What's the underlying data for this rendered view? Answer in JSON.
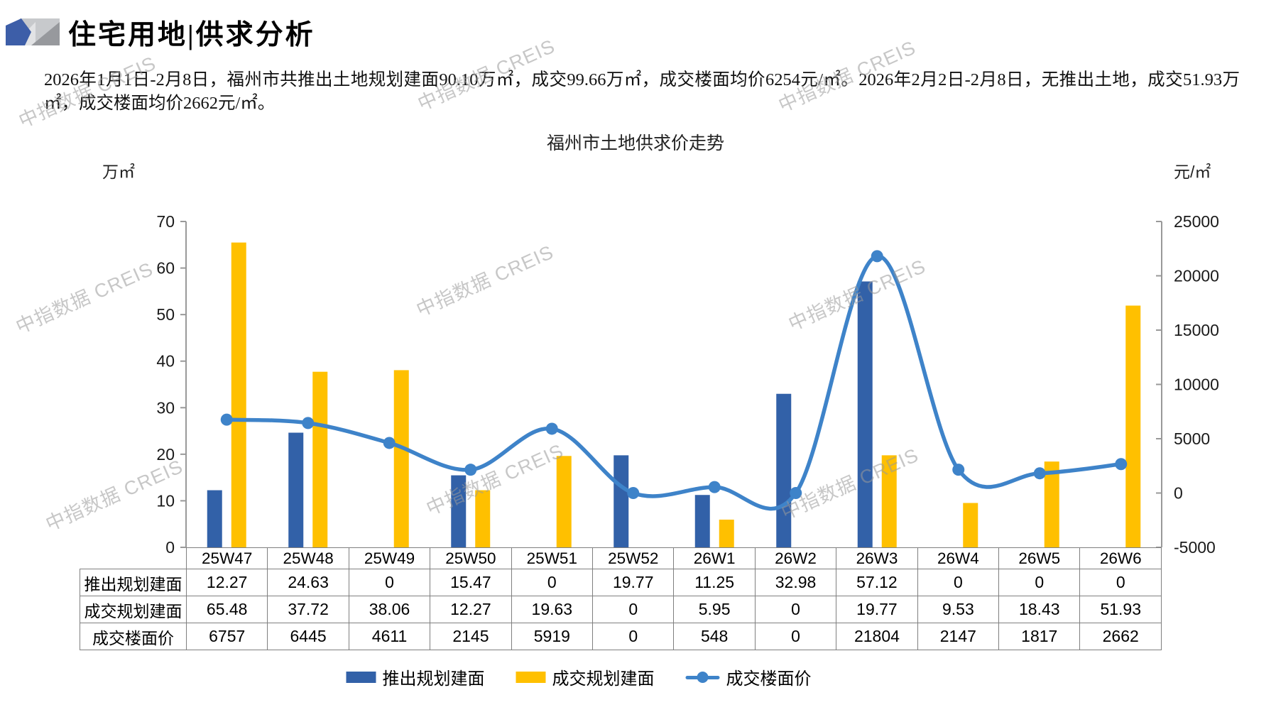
{
  "header": {
    "title": "住宅用地|供求分析"
  },
  "summary": "2026年1月1日-2月8日，福州市共推出土地规划建面90.10万㎡，成交99.66万㎡，成交楼面均价6254元/㎡。2026年2月2日-2月8日，无推出土地，成交51.93万㎡，成交楼面均价2662元/㎡。",
  "watermark": "中指数据 CREIS",
  "colors": {
    "bar_blue": "#3261A8",
    "bar_yellow": "#FFC000",
    "line_blue": "#3E83C9",
    "axis_gray": "#999999",
    "table_border": "#7F7F7F",
    "icon_blue": "#3D5EA8",
    "icon_gray_light": "#C7C9CC",
    "icon_gray_dark": "#97999D"
  },
  "chart_data": {
    "type": "bar+line",
    "title": "福州市土地供求价走势",
    "categories": [
      "25W47",
      "25W48",
      "25W49",
      "25W50",
      "25W51",
      "25W52",
      "26W1",
      "26W2",
      "26W3",
      "26W4",
      "26W5",
      "26W6"
    ],
    "series": [
      {
        "name": "推出规划建面",
        "type": "bar",
        "axis": "left",
        "values": [
          12.27,
          24.63,
          0,
          15.47,
          0,
          19.77,
          11.25,
          32.98,
          57.12,
          0,
          0,
          0
        ]
      },
      {
        "name": "成交规划建面",
        "type": "bar",
        "axis": "left",
        "values": [
          65.48,
          37.72,
          38.06,
          12.27,
          19.63,
          0,
          5.95,
          0,
          19.77,
          9.53,
          18.43,
          51.93
        ]
      },
      {
        "name": "成交楼面价",
        "type": "line",
        "axis": "right",
        "values": [
          6757,
          6445,
          4611,
          2145,
          5919,
          0,
          548,
          0,
          21804,
          2147,
          1817,
          2662
        ]
      }
    ],
    "left_axis": {
      "unit": "万㎡",
      "min": 0,
      "max": 70,
      "step": 10,
      "ticks": [
        70,
        60,
        50,
        40,
        30,
        20,
        10,
        0
      ]
    },
    "right_axis": {
      "unit": "元/㎡",
      "min": -5000,
      "max": 25000,
      "step": 5000,
      "ticks": [
        25000,
        20000,
        15000,
        10000,
        5000,
        0,
        -5000
      ]
    },
    "gridlines": false,
    "legend_position": "bottom"
  }
}
